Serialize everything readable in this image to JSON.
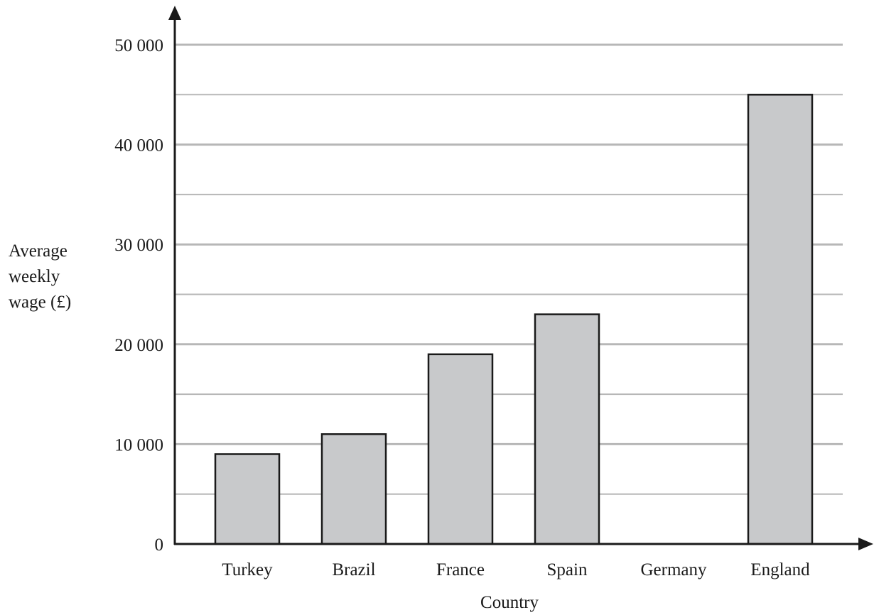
{
  "chart_data": {
    "type": "bar",
    "title": "",
    "xlabel": "Country",
    "ylabel_lines": [
      "Average",
      "weekly",
      "wage (£)"
    ],
    "categories": [
      "Turkey",
      "Brazil",
      "France",
      "Spain",
      "Germany",
      "England"
    ],
    "values": [
      9000,
      11000,
      19000,
      23000,
      null,
      45000
    ],
    "ylim": [
      0,
      50000
    ],
    "ytick_values": [
      0,
      10000,
      20000,
      30000,
      40000,
      50000
    ],
    "ytick_labels": [
      "0",
      "10 000",
      "20 000",
      "30 000",
      "40 000",
      "50 000"
    ],
    "minor_gridline_step": 5000,
    "grid": true,
    "bar_fill": "#c8c9cb",
    "bar_stroke": "#1a1a1a",
    "grid_color": "#b7b7b7",
    "axis_color": "#1a1a1a"
  }
}
